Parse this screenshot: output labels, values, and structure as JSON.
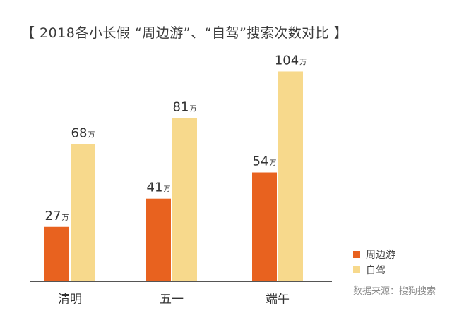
{
  "title": "【 2018各小长假 “周边游”、“自驾”搜索次数对比 】",
  "source": "数据来源：搜狗搜索",
  "colors": {
    "series1": "#e8621f",
    "series2": "#f7d98c",
    "axis": "#555555"
  },
  "chart_data": {
    "type": "bar",
    "title": "【 2018各小长假 “周边游”、“自驾”搜索次数对比 】",
    "categories": [
      "清明",
      "五一",
      "端午"
    ],
    "series": [
      {
        "name": "周边游",
        "values": [
          27,
          41,
          54
        ]
      },
      {
        "name": "自驾",
        "values": [
          68,
          81,
          104
        ]
      }
    ],
    "unit": "万",
    "ylim": [
      0,
      115
    ],
    "grid": false,
    "legend": "bottom-right"
  }
}
